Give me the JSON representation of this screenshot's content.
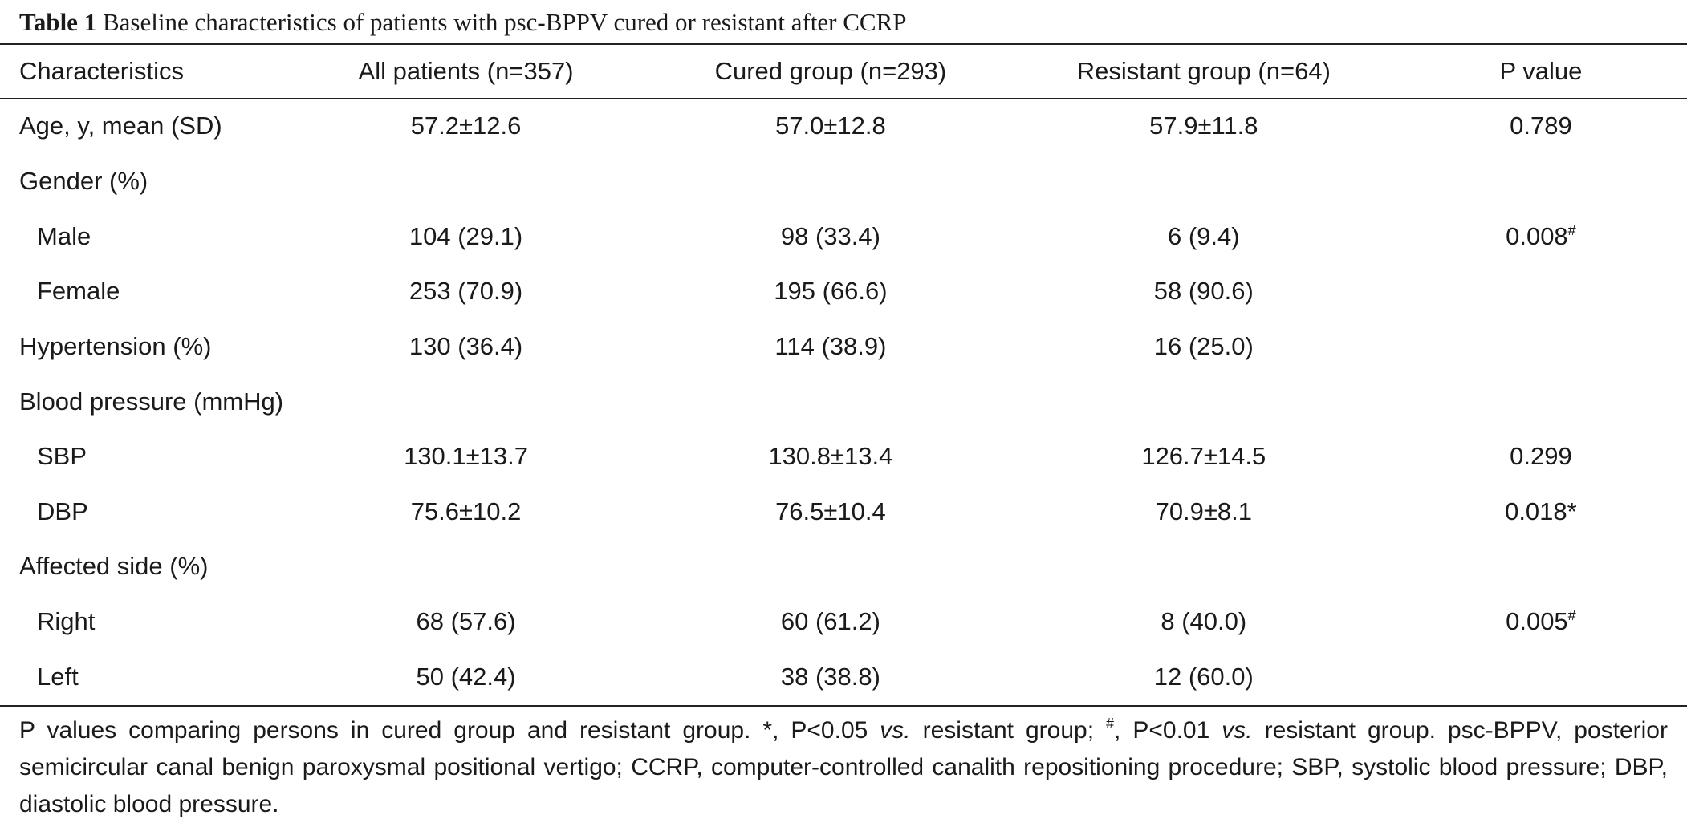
{
  "caption": {
    "label": "Table 1",
    "text": "Baseline characteristics of patients with psc-BPPV cured or resistant after CCRP"
  },
  "table": {
    "headers": [
      "Characteristics",
      "All patients (n=357)",
      "Cured group (n=293)",
      "Resistant group (n=64)",
      "P value"
    ],
    "rows": [
      {
        "label": "Age, y, mean (SD)",
        "all": "57.2±12.6",
        "cured": "57.0±12.8",
        "resistant": "57.9±11.8",
        "p": "0.789",
        "p_mark": ""
      },
      {
        "label": "Gender (%)",
        "all": "",
        "cured": "",
        "resistant": "",
        "p": "",
        "p_mark": ""
      },
      {
        "label": "Male",
        "all": "104 (29.1)",
        "cured": "98 (33.4)",
        "resistant": "6 (9.4)",
        "p": "0.008",
        "p_mark": "#"
      },
      {
        "label": "Female",
        "all": "253 (70.9)",
        "cured": "195 (66.6)",
        "resistant": "58 (90.6)",
        "p": "",
        "p_mark": ""
      },
      {
        "label": "Hypertension (%)",
        "all": "130 (36.4)",
        "cured": "114 (38.9)",
        "resistant": "16 (25.0)",
        "p": "",
        "p_mark": ""
      },
      {
        "label": "Blood pressure (mmHg)",
        "all": "",
        "cured": "",
        "resistant": "",
        "p": "",
        "p_mark": ""
      },
      {
        "label": "SBP",
        "all": "130.1±13.7",
        "cured": "130.8±13.4",
        "resistant": "126.7±14.5",
        "p": "0.299",
        "p_mark": ""
      },
      {
        "label": "DBP",
        "all": "75.6±10.2",
        "cured": "76.5±10.4",
        "resistant": "70.9±8.1",
        "p": "0.018*",
        "p_mark": ""
      },
      {
        "label": "Affected side (%)",
        "all": "",
        "cured": "",
        "resistant": "",
        "p": "",
        "p_mark": ""
      },
      {
        "label": "Right",
        "all": "68 (57.6)",
        "cured": "60 (61.2)",
        "resistant": "8 (40.0)",
        "p": "0.005",
        "p_mark": "#"
      },
      {
        "label": "Left",
        "all": "50 (42.4)",
        "cured": "38 (38.8)",
        "resistant": "12 (60.0)",
        "p": "",
        "p_mark": ""
      }
    ]
  },
  "footnote": {
    "p1": "P values comparing persons in cured group and resistant group. *, P<0.05 ",
    "vs1": "vs.",
    "p2": " resistant group; ",
    "mark": "#",
    "p3": ", P<0.01 ",
    "vs2": "vs.",
    "p4": " resistant group. psc-BPPV, posterior semicircular canal benign paroxysmal positional vertigo; CCRP, computer-controlled canalith repositioning procedure; SBP, systolic blood pressure; DBP, diastolic blood pressure."
  }
}
